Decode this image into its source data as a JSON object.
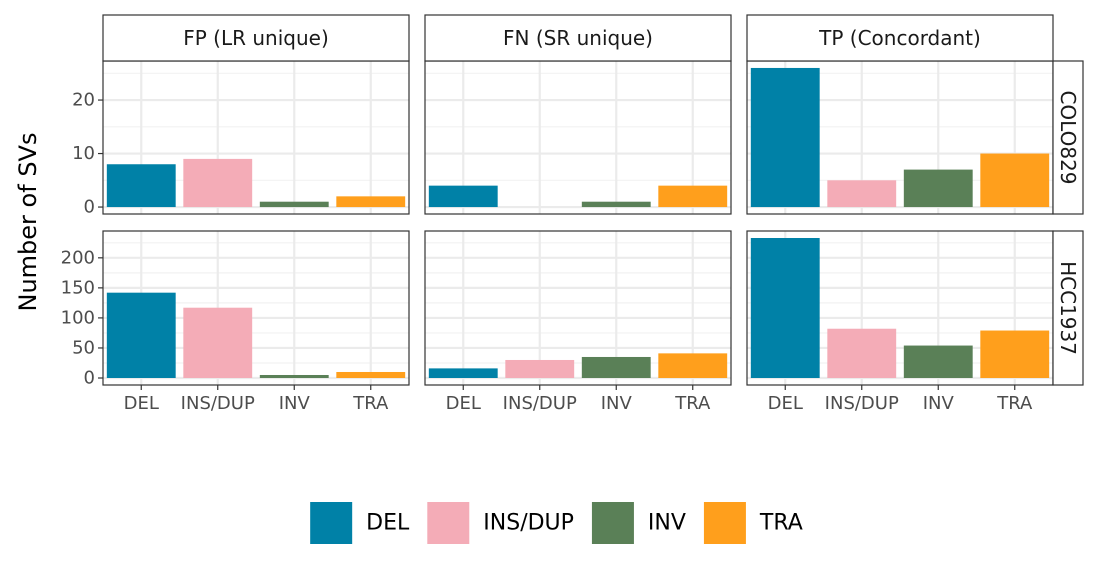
{
  "chart_data": {
    "type": "bar",
    "ylabel": "Number of SVs",
    "categories": [
      "DEL",
      "INS/DUP",
      "INV",
      "TRA"
    ],
    "colors": {
      "DEL": "#0081A7",
      "INS/DUP": "#F4ACB7",
      "INV": "#5A8057",
      "TRA": "#FF9F1C"
    },
    "columns": [
      "FP (LR unique)",
      "FN (SR unique)",
      "TP (Concordant)"
    ],
    "rows": [
      {
        "name": "COLO829",
        "ylim": [
          -1.3,
          27.3
        ],
        "ticks": [
          0,
          10,
          20
        ],
        "tick_labels": [
          "0",
          "10",
          "20"
        ],
        "panels": [
          {
            "values": [
              8,
              9,
              1,
              2
            ]
          },
          {
            "values": [
              4,
              0,
              1,
              4
            ]
          },
          {
            "values": [
              26,
              5,
              7,
              10
            ]
          }
        ]
      },
      {
        "name": "HCC1937",
        "ylim": [
          -11.65,
          244.65
        ],
        "ticks": [
          0,
          50,
          100,
          150,
          200
        ],
        "tick_labels": [
          "0",
          "50",
          "100",
          "150",
          "200"
        ],
        "panels": [
          {
            "values": [
              142,
              117,
              5,
              10
            ]
          },
          {
            "values": [
              16,
              30,
              35,
              41
            ]
          },
          {
            "values": [
              233,
              82,
              54,
              79
            ]
          }
        ]
      }
    ],
    "legend": {
      "position": "bottom",
      "entries": [
        "DEL",
        "INS/DUP",
        "INV",
        "TRA"
      ]
    },
    "grid": true
  }
}
